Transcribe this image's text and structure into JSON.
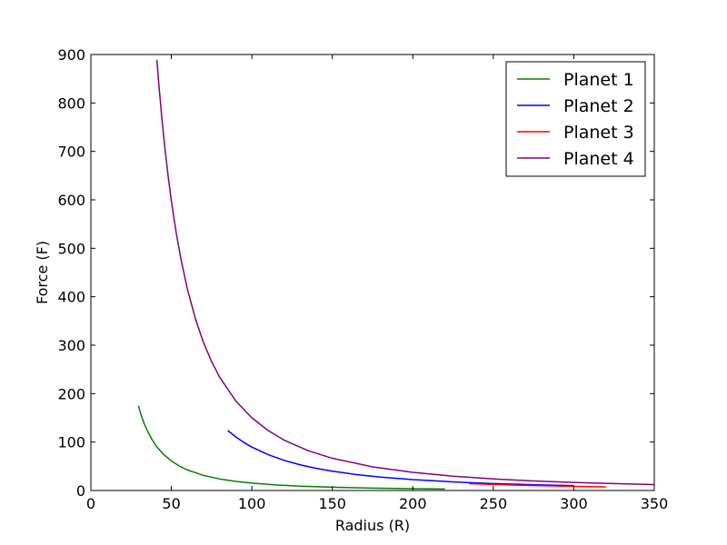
{
  "chart_data": {
    "type": "line",
    "title": "",
    "xlabel": "Radius (R)",
    "ylabel": "Force (F)",
    "xlim": [
      0,
      350
    ],
    "ylim": [
      0,
      900
    ],
    "xticks": [
      "0",
      "50",
      "100",
      "150",
      "200",
      "250",
      "300",
      "350"
    ],
    "yticks": [
      "0",
      "100",
      "200",
      "300",
      "400",
      "500",
      "600",
      "700",
      "800",
      "900"
    ],
    "grid": false,
    "legend_position": "top-right",
    "series": [
      {
        "name": "Planet 1",
        "color": "#008000",
        "x": [
          29.5,
          31,
          33,
          35,
          38,
          41,
          45,
          50,
          55,
          60,
          70,
          80,
          90,
          100,
          115,
          130,
          150,
          175,
          200,
          220
        ],
        "y": [
          175,
          158,
          139,
          124,
          105,
          90,
          75,
          61,
          50.4,
          42.4,
          31.1,
          23.8,
          18.8,
          15.2,
          11.5,
          9.0,
          6.8,
          5.0,
          3.8,
          3.1
        ]
      },
      {
        "name": "Planet 2",
        "color": "#0000ff",
        "x": [
          85,
          90,
          95,
          100,
          110,
          120,
          130,
          140,
          150,
          165,
          180,
          200,
          225,
          250,
          280,
          300
        ],
        "y": [
          124,
          110.6,
          99.3,
          89.6,
          74.1,
          62.2,
          53.0,
          45.7,
          39.8,
          32.9,
          27.7,
          22.4,
          17.7,
          14.3,
          11.4,
          10.0
        ]
      },
      {
        "name": "Planet 3",
        "color": "#ff0000",
        "x": [
          235,
          250,
          270,
          290,
          305,
          320
        ],
        "y": [
          14.0,
          12.4,
          10.6,
          9.2,
          8.3,
          7.5
        ]
      },
      {
        "name": "Planet 4",
        "color": "#800080",
        "x": [
          41,
          42,
          44,
          46,
          48,
          50,
          53,
          56,
          60,
          65,
          70,
          75,
          80,
          90,
          100,
          110,
          120,
          135,
          150,
          175,
          200,
          225,
          250,
          275,
          300,
          325,
          350
        ],
        "y": [
          889,
          847,
          772,
          706,
          649,
          598,
          532,
          477,
          415,
          354,
          305,
          266,
          234,
          185,
          150,
          124,
          104,
          82.1,
          66.5,
          48.8,
          37.4,
          29.5,
          23.9,
          19.8,
          16.6,
          14.2,
          12.2
        ]
      }
    ]
  }
}
